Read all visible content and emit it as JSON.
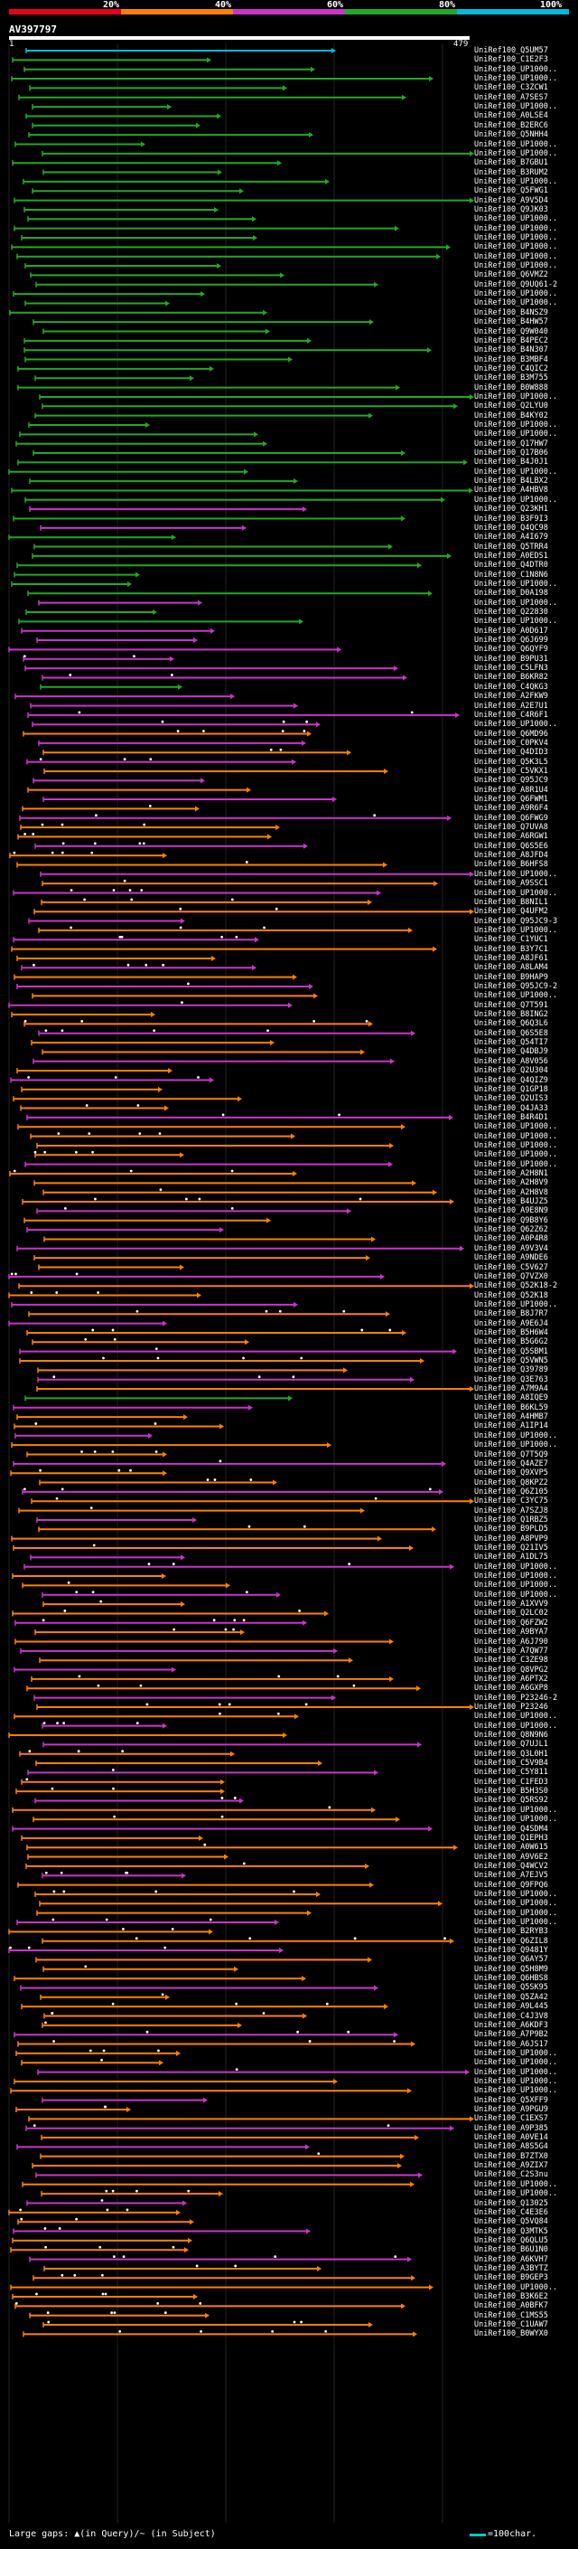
{
  "chart_data": {
    "type": "alignment-overview",
    "title": "AV397797",
    "legend": [
      {
        "label": "20%",
        "color": "#e8001c"
      },
      {
        "label": "40%",
        "color": "#ff8000"
      },
      {
        "label": "60%",
        "color": "#cc33cc"
      },
      {
        "label": "80%",
        "color": "#22aa22"
      },
      {
        "label": "100%",
        "color": "#00bbdd"
      }
    ],
    "query_start": "1",
    "query_end": "479",
    "hits": [
      "UniRef100_Q5UM57",
      "UniRef100_C1E2F3",
      "UniRef100_UP1000..",
      "UniRef100_UP1000..",
      "UniRef100_C3ZCW1",
      "UniRef100_A7SES7",
      "UniRef100_UP1000..",
      "UniRef100_A0LSE4",
      "UniRef100_B2ERC6",
      "UniRef100_Q5NHH4",
      "UniRef100_UP1000..",
      "UniRef100_UP1000..",
      "UniRef100_B7GBU1",
      "UniRef100_B3RUM2",
      "UniRef100_UP1000..",
      "UniRef100_Q5FWG1",
      "UniRef100_A9V5D4",
      "UniRef100_Q9JK03",
      "UniRef100_UP1000..",
      "UniRef100_UP1000..",
      "UniRef100_UP1000..",
      "UniRef100_UP1000..",
      "UniRef100_UP1000..",
      "UniRef100_UP1000..",
      "UniRef100_Q6VMZ2",
      "UniRef100_Q9UQ61-2",
      "UniRef100_UP1000..",
      "UniRef100_UP1000..",
      "UniRef100_B4NSZ9",
      "UniRef100_B4HW57",
      "UniRef100_Q9W040",
      "UniRef100_B4PEC2",
      "UniRef100_B4N307",
      "UniRef100_B3MBF4",
      "UniRef100_C4QIC2",
      "UniRef100_B3M755",
      "UniRef100_B0W888",
      "UniRef100_UP1000..",
      "UniRef100_Q2LYU0",
      "UniRef100_B4KY02",
      "UniRef100_UP1000..",
      "UniRef100_UP1000..",
      "UniRef100_Q17HW7",
      "UniRef100_Q17B06",
      "UniRef100_B4J0J1",
      "UniRef100_UP1000..",
      "UniRef100_B4LBX2",
      "UniRef100_A4HBV8",
      "UniRef100_UP1000..",
      "UniRef100_Q23KH1",
      "UniRef100_B3F9I3",
      "UniRef100_Q4QC98",
      "UniRef100_A4I679",
      "UniRef100_Q5TRR4",
      "UniRef100_A0EDS1",
      "UniRef100_Q4DTR0",
      "UniRef100_C1N8N6",
      "UniRef100_UP1000..",
      "UniRef100_D0A198",
      "UniRef100_UP1000..",
      "UniRef100_Q22830",
      "UniRef100_UP1000..",
      "UniRef100_A0D617",
      "UniRef100_Q6J699",
      "UniRef100_Q6QYF9",
      "UniRef100_B9PU31",
      "UniRef100_C5LFN3",
      "UniRef100_B6KR82",
      "UniRef100_C4QKG3",
      "UniRef100_A2FKW9",
      "UniRef100_A2E7U1",
      "UniRef100_C4R6F1",
      "UniRef100_UP1000..",
      "UniRef100_Q6MD96",
      "UniRef100_C0PKV4",
      "UniRef100_Q4DID3",
      "UniRef100_Q5K3L5",
      "UniRef100_C5VKX1",
      "UniRef100_Q95JC9",
      "UniRef100_A8R1U4",
      "UniRef100_Q6FWM1",
      "UniRef100_A9R6F4",
      "UniRef100_Q6FWG9",
      "UniRef100_Q7UVA8",
      "UniRef100_A6RGW1",
      "UniRef100_Q6S5E6",
      "UniRef100_A8JFD4",
      "UniRef100_B6HFS8",
      "UniRef100_UP1000..",
      "UniRef100_A9SSC1",
      "UniRef100_UP1000..",
      "UniRef100_B8NIL1",
      "UniRef100_Q4UFM2",
      "UniRef100_Q95JC9-3",
      "UniRef100_UP1000..",
      "UniRef100_C1YUC1",
      "UniRef100_B3Y7C1",
      "UniRef100_A8JF61",
      "UniRef100_A8LAM4",
      "UniRef100_B9HAP9",
      "UniRef100_Q95JC9-2",
      "UniRef100_UP1000..",
      "UniRef100_Q7T591",
      "UniRef100_B8ING2",
      "UniRef100_Q6Q3L6",
      "UniRef100_Q6S5E8",
      "UniRef100_Q54TI7",
      "UniRef100_Q4DBJ9",
      "UniRef100_A8V056",
      "UniRef100_Q2U304",
      "UniRef100_Q4QIZ9",
      "UniRef100_Q1GP18",
      "UniRef100_Q2UIS3",
      "UniRef100_Q4JA33",
      "UniRef100_B4R4D1",
      "UniRef100_UP1000..",
      "UniRef100_UP1000..",
      "UniRef100_UP1000..",
      "UniRef100_UP1000..",
      "UniRef100_UP1000..",
      "UniRef100_A2H8N1",
      "UniRef100_A2H8V9",
      "UniRef100_A2H8V8",
      "UniRef100_B4UJZ5",
      "UniRef100_A9E8N9",
      "UniRef100_Q9B8Y6",
      "UniRef100_Q62Z62",
      "UniRef100_A0P4R8",
      "UniRef100_A9V3V4",
      "UniRef100_A9NDE6",
      "UniRef100_C5V627",
      "UniRef100_Q7VZX0",
      "UniRef100_Q52K18-2",
      "UniRef100_Q52K18",
      "UniRef100_UP1000..",
      "UniRef100_B8J7R7",
      "UniRef100_A9E6J4",
      "UniRef100_B5H6W4",
      "UniRef100_B5G6G2",
      "UniRef100_Q5SBM1",
      "UniRef100_Q5VWN5",
      "UniRef100_Q39789",
      "UniRef100_Q3E763",
      "UniRef100_A7M9A4",
      "UniRef100_A8IQE9",
      "UniRef100_B6KL59",
      "UniRef100_A4HMB7",
      "UniRef100_A1IP14",
      "UniRef100_UP1000..",
      "UniRef100_UP1000..",
      "UniRef100_Q7T5Q9",
      "UniRef100_Q4AZE7",
      "UniRef100_Q9XVP5",
      "UniRef100_Q8KPZ2",
      "UniRef100_Q6Z105",
      "UniRef100_C3YC75",
      "UniRef100_A7SZJ8",
      "UniRef100_Q1RBZ5",
      "UniRef100_B9PLD5",
      "UniRef100_A8PVP9",
      "UniRef100_Q21IV5",
      "UniRef100_A1DL75",
      "UniRef100_UP1000..",
      "UniRef100_UP1000..",
      "UniRef100_UP1000..",
      "UniRef100_UP1000..",
      "UniRef100_A1XVV9",
      "UniRef100_Q2LC02",
      "UniRef100_Q6FZW2",
      "UniRef100_A9BYA7",
      "UniRef100_A6J790",
      "UniRef100_A7QW77",
      "UniRef100_C3ZE98",
      "UniRef100_Q8VPG2",
      "UniRef100_A6PTX2",
      "UniRef100_A6GXP8",
      "UniRef100_P23246-2",
      "UniRef100_P23246",
      "UniRef100_UP1000..",
      "UniRef100_UP1000..",
      "UniRef100_Q8N9N6",
      "UniRef100_Q7UJL1",
      "UniRef100_Q3L0H1",
      "UniRef100_C5V9B4",
      "UniRef100_C5Y811",
      "UniRef100_C1FED3",
      "UniRef100_B5H3S0",
      "UniRef100_Q5RS92",
      "UniRef100_UP1000..",
      "UniRef100_UP1000..",
      "UniRef100_Q4SDM4",
      "UniRef100_Q1EPH3",
      "UniRef100_A0W615",
      "UniRef100_A9V6E2",
      "UniRef100_Q4WCV2",
      "UniRef100_A7EJV5",
      "UniRef100_Q9FPQ6",
      "UniRef100_UP1000..",
      "UniRef100_UP1000..",
      "UniRef100_UP1000..",
      "UniRef100_UP1000..",
      "UniRef100_B2RYB3",
      "UniRef100_Q6ZIL8",
      "UniRef100_Q9481Y",
      "UniRef100_Q6AY57",
      "UniRef100_Q5H8M9",
      "UniRef100_Q6HBS8",
      "UniRef100_Q5SK95",
      "UniRef100_Q5ZA42",
      "UniRef100_A9L445",
      "UniRef100_C4J3V8",
      "UniRef100_A6KDF3",
      "UniRef100_A7P9B2",
      "UniRef100_A6JS17",
      "UniRef100_UP1000..",
      "UniRef100_UP1000..",
      "UniRef100_UP1000..",
      "UniRef100_UP1000..",
      "UniRef100_UP1000..",
      "UniRef100_Q5XFF9",
      "UniRef100_A9PGU9",
      "UniRef100_C1EXS7",
      "UniRef100_A9P385",
      "UniRef100_A0VE14",
      "UniRef100_A8S5G4",
      "UniRef100_B7ZTX0",
      "UniRef100_A9ZIX7",
      "UniRef100_C2S3nu",
      "UniRef100_UP1000..",
      "UniRef100_UP1000..",
      "UniRef100_Q13025",
      "UniRef100_C4E3E6",
      "UniRef100_Q5VQ84",
      "UniRef100_Q3MTK5",
      "UniRef100_Q6QLU5",
      "UniRef100_B6U1N0",
      "UniRef100_A6KVH7",
      "UniRef100_A3BYTZ",
      "UniRef100_B9GEP3",
      "UniRef100_UP1000..",
      "UniRef100_B3K6E2",
      "UniRef100_A0BFK7",
      "UniRef100_C1MS55",
      "UniRef100_C1UAW7",
      "UniRef100_B0WYX0"
    ],
    "hit_colors": [
      "#00bbdd",
      "#22aa22",
      "#22aa22",
      "#22aa22",
      "#22aa22",
      "#22aa22",
      "#22aa22",
      "#22aa22",
      "#22aa22",
      "#22aa22",
      "#22aa22",
      "#22aa22",
      "#22aa22",
      "#22aa22",
      "#22aa22",
      "#22aa22",
      "#22aa22",
      "#22aa22",
      "#22aa22",
      "#22aa22",
      "#22aa22",
      "#22aa22",
      "#22aa22",
      "#22aa22",
      "#22aa22",
      "#22aa22",
      "#22aa22",
      "#22aa22",
      "#22aa22",
      "#22aa22",
      "#22aa22",
      "#22aa22",
      "#22aa22",
      "#22aa22",
      "#22aa22",
      "#22aa22",
      "#22aa22",
      "#22aa22",
      "#22aa22",
      "#22aa22",
      "#22aa22",
      "#22aa22",
      "#22aa22",
      "#22aa22",
      "#22aa22",
      "#22aa22",
      "#22aa22",
      "#22aa22",
      "#22aa22",
      "#cc33cc",
      "#22aa22",
      "#cc33cc",
      "#22aa22",
      "#22aa22",
      "#22aa22",
      "#22aa22",
      "#22aa22",
      "#22aa22",
      "#22aa22",
      "#cc33cc",
      "#22aa22",
      "#22aa22",
      "#cc33cc",
      "#cc33cc",
      "#cc33cc",
      "#cc33cc",
      "#cc33cc",
      "#cc33cc",
      "#22aa22",
      "#cc33cc",
      "#cc33cc",
      "#cc33cc",
      "#cc33cc",
      "#ff8000",
      "#cc33cc",
      "#ff8000",
      "#cc33cc",
      "#ff8000",
      "#cc33cc",
      "#ff8000",
      "#cc33cc",
      "#ff8000",
      "#cc33cc",
      "#ff8000",
      "#ff8000",
      "#cc33cc",
      "#ff8000",
      "#ff8000",
      "#cc33cc",
      "#ff8000",
      "#cc33cc",
      "#ff8000",
      "#ff8000",
      "#cc33cc",
      "#ff8000",
      "#cc33cc",
      "#ff8000",
      "#ff8000",
      "#cc33cc",
      "#ff8000",
      "#cc33cc",
      "#ff8000",
      "#cc33cc",
      "#ff8000",
      "#ff8000",
      "#cc33cc",
      "#ff8000",
      "#ff8000",
      "#cc33cc",
      "#ff8000",
      "#cc33cc",
      "#ff8000",
      "#ff8000",
      "#ff8000",
      "#cc33cc",
      "#ff8000",
      "#ff8000",
      "#ff8000",
      "#ff8000",
      "#cc33cc",
      "#ff8000",
      "#ff8000",
      "#ff8000",
      "#ff8000",
      "#cc33cc",
      "#ff8000",
      "#cc33cc",
      "#ff8000",
      "#cc33cc",
      "#ff8000",
      "#ff8000",
      "#cc33cc",
      "#ff8000",
      "#ff8000",
      "#cc33cc",
      "#ff8000",
      "#cc33cc",
      "#ff8000",
      "#ff8000",
      "#cc33cc",
      "#ff8000",
      "#ff8000",
      "#cc33cc",
      "#ff8000",
      "#22aa22",
      "#cc33cc",
      "#ff8000",
      "#ff8000",
      "#cc33cc",
      "#ff8000",
      "#ff8000",
      "#cc33cc",
      "#ff8000",
      "#ff8000",
      "#cc33cc",
      "#ff8000",
      "#ff8000",
      "#cc33cc",
      "#ff8000",
      "#ff8000",
      "#ff8000",
      "#cc33cc",
      "#cc33cc",
      "#ff8000",
      "#ff8000",
      "#cc33cc",
      "#ff8000",
      "#ff8000",
      "#cc33cc",
      "#ff8000",
      "#ff8000",
      "#cc33cc",
      "#ff8000",
      "#cc33cc",
      "#ff8000",
      "#ff8000",
      "#cc33cc",
      "#ff8000",
      "#ff8000",
      "#cc33cc",
      "#ff8000",
      "#cc33cc",
      "#ff8000",
      "#ff8000",
      "#cc33cc",
      "#ff8000",
      "#ff8000",
      "#cc33cc",
      "#ff8000",
      "#ff8000",
      "#cc33cc",
      "#ff8000",
      "#ff8000",
      "#ff8000",
      "#ff8000",
      "#cc33cc",
      "#ff8000",
      "#ff8000",
      "#ff8000",
      "#ff8000",
      "#cc33cc",
      "#ff8000",
      "#ff8000",
      "#cc33cc",
      "#ff8000",
      "#ff8000",
      "#ff8000",
      "#cc33cc",
      "#ff8000",
      "#ff8000",
      "#ff8000",
      "#ff8000",
      "#cc33cc",
      "#ff8000",
      "#ff8000",
      "#ff8000",
      "#cc33cc",
      "#ff8000",
      "#ff8000",
      "#cc33cc",
      "#ff8000",
      "#ff8000",
      "#cc33cc",
      "#ff8000",
      "#cc33cc",
      "#ff8000",
      "#ff8000",
      "#cc33cc",
      "#ff8000",
      "#ff8000",
      "#cc33cc",
      "#ff8000",
      "#ff8000",
      "#cc33cc",
      "#ff8000",
      "#ff8000",
      "#cc33cc",
      "#ff8000"
    ]
  },
  "footer": {
    "gaps_label": "Large gaps: ▲(in Query)/~ (in Subject)",
    "scale_label": "=100char."
  }
}
